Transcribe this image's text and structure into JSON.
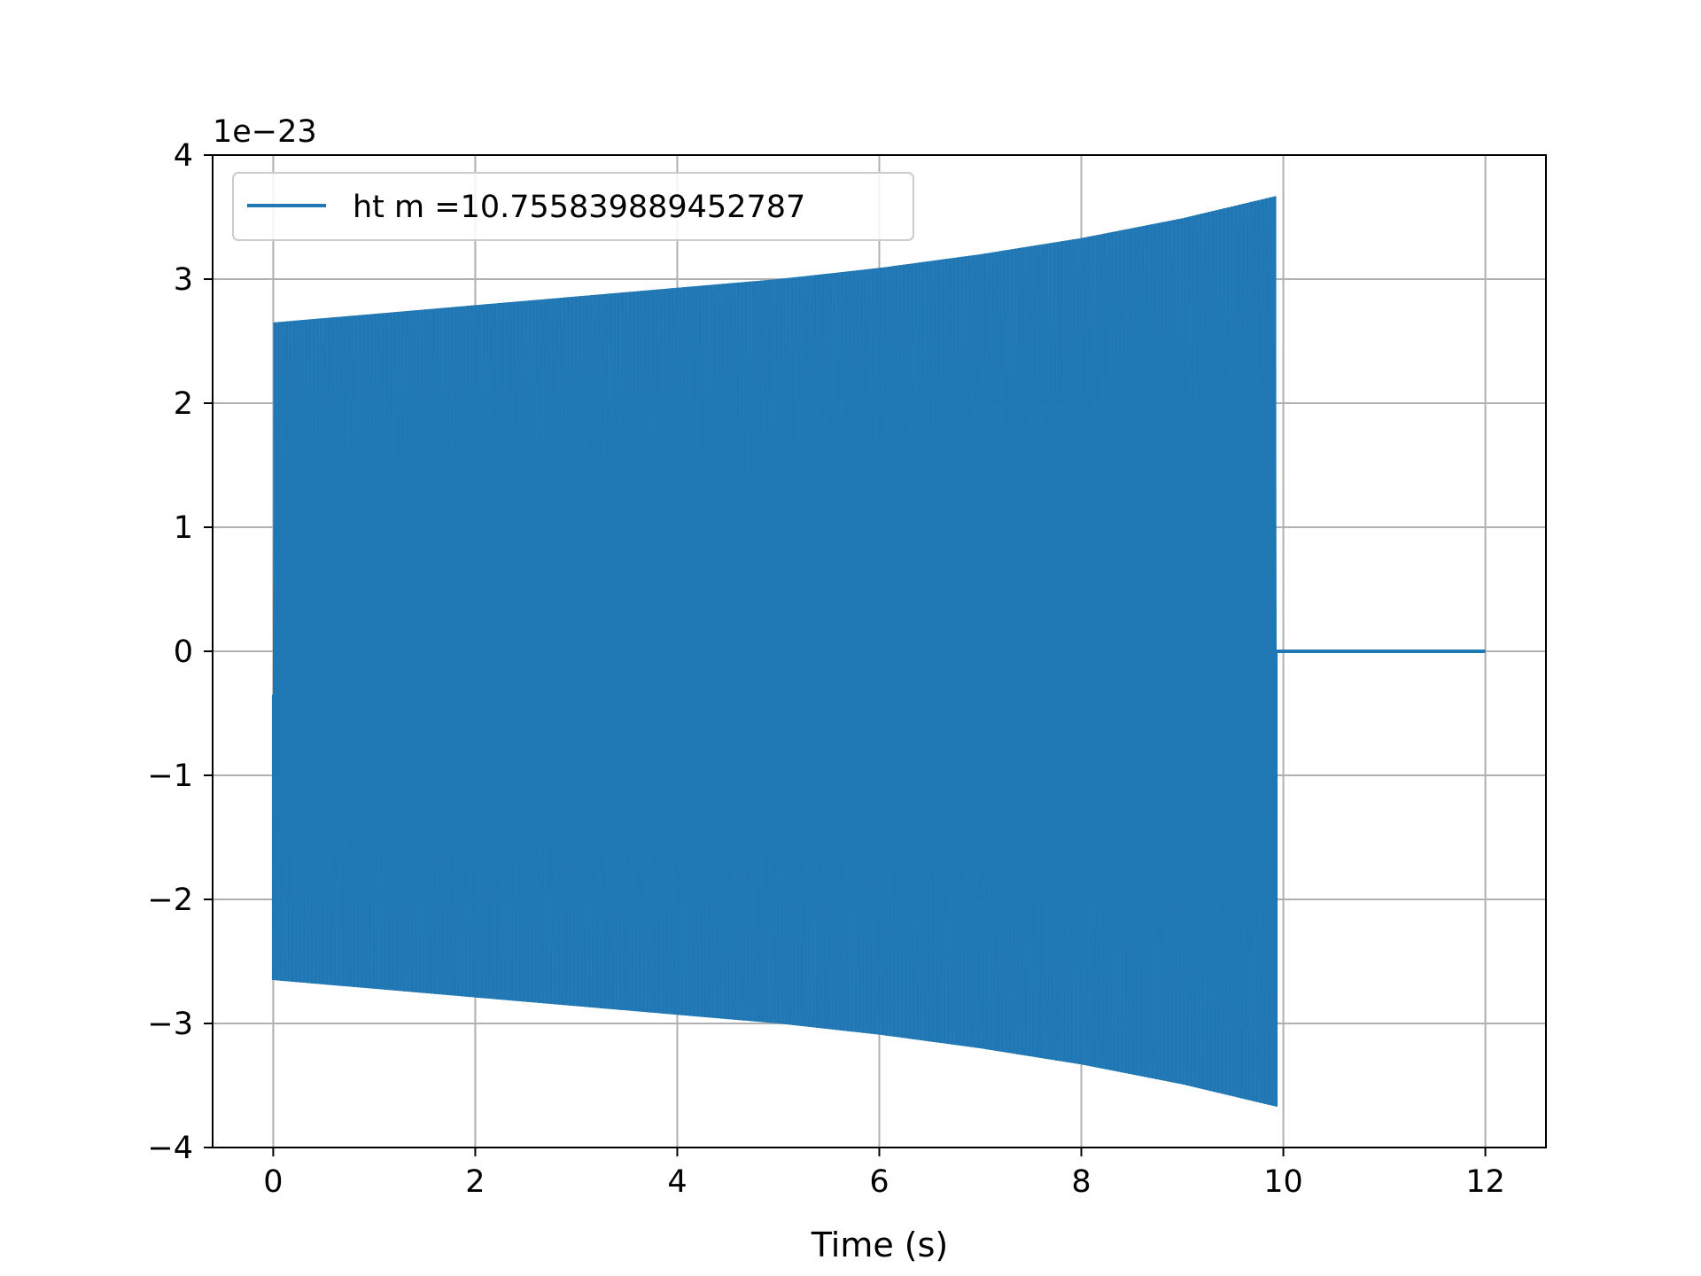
{
  "chart_data": {
    "type": "line",
    "title": "",
    "xlabel": "Time (s)",
    "ylabel": "",
    "y_offset_label": "1e−23",
    "xlim": [
      -0.6,
      12.6
    ],
    "ylim": [
      -4.0,
      4.0
    ],
    "x_ticks": [
      {
        "value": 0,
        "label": "0"
      },
      {
        "value": 2,
        "label": "2"
      },
      {
        "value": 4,
        "label": "4"
      },
      {
        "value": 6,
        "label": "6"
      },
      {
        "value": 8,
        "label": "8"
      },
      {
        "value": 10,
        "label": "10"
      },
      {
        "value": 12,
        "label": "12"
      }
    ],
    "y_ticks": [
      {
        "value": -4,
        "label": "−4"
      },
      {
        "value": -3,
        "label": "−3"
      },
      {
        "value": -2,
        "label": "−2"
      },
      {
        "value": -1,
        "label": "−1"
      },
      {
        "value": 0,
        "label": "0"
      },
      {
        "value": 1,
        "label": "1"
      },
      {
        "value": 2,
        "label": "2"
      },
      {
        "value": 3,
        "label": "3"
      },
      {
        "value": 4,
        "label": "4"
      }
    ],
    "grid": true,
    "legend_position": "top-left",
    "series": [
      {
        "name": "ht m =10.755839889452787",
        "color": "#1f77b4",
        "description": "chirp oscillation",
        "start_x": 0.0,
        "start_y": -0.35,
        "end_x": 9.93,
        "flat_end_x": 12.0,
        "flat_y": 0.0,
        "envelope": [
          {
            "x": 0.0,
            "amp": 2.65
          },
          {
            "x": 1.0,
            "amp": 2.72
          },
          {
            "x": 2.0,
            "amp": 2.79
          },
          {
            "x": 3.0,
            "amp": 2.86
          },
          {
            "x": 4.0,
            "amp": 2.93
          },
          {
            "x": 5.0,
            "amp": 3.0
          },
          {
            "x": 6.0,
            "amp": 3.09
          },
          {
            "x": 7.0,
            "amp": 3.2
          },
          {
            "x": 8.0,
            "amp": 3.33
          },
          {
            "x": 9.0,
            "amp": 3.49
          },
          {
            "x": 9.93,
            "amp": 3.67
          }
        ]
      }
    ]
  }
}
